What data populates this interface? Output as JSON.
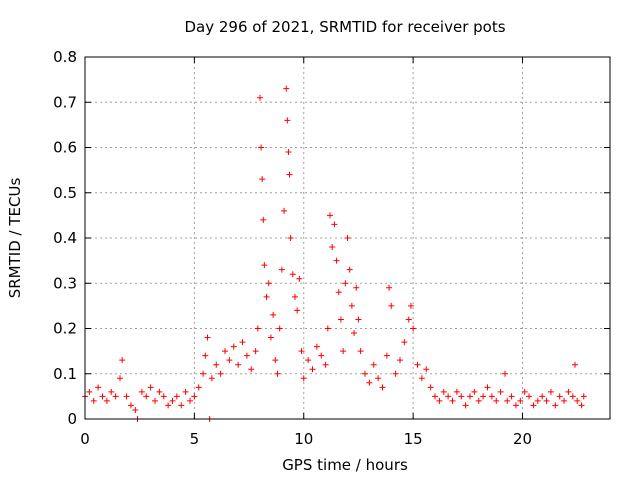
{
  "chart_data": {
    "type": "scatter",
    "title": "Day 296 of 2021, SRMTID for receiver pots",
    "xlabel": "GPS time / hours",
    "ylabel": "SRMTID / TECUs",
    "xlim": [
      0,
      24
    ],
    "ylim": [
      0,
      0.8
    ],
    "xticks": [
      0,
      5,
      10,
      15,
      20
    ],
    "xtick_labels": [
      "0",
      "5",
      "10",
      "15",
      "20"
    ],
    "yticks": [
      0,
      0.1,
      0.2,
      0.3,
      0.4,
      0.5,
      0.6,
      0.7,
      0.8
    ],
    "ytick_labels": [
      "0",
      "0.1",
      "0.2",
      "0.3",
      "0.4",
      "0.5",
      "0.6",
      "0.7",
      "0.8"
    ],
    "grid": true,
    "marker": "+",
    "color": "#ff0000",
    "series": [
      {
        "name": "SRMTID",
        "points": [
          [
            0.0,
            0.05
          ],
          [
            0.2,
            0.06
          ],
          [
            0.4,
            0.04
          ],
          [
            0.6,
            0.07
          ],
          [
            0.8,
            0.05
          ],
          [
            1.0,
            0.04
          ],
          [
            1.2,
            0.06
          ],
          [
            1.4,
            0.05
          ],
          [
            1.6,
            0.09
          ],
          [
            1.7,
            0.13
          ],
          [
            1.9,
            0.05
          ],
          [
            2.1,
            0.03
          ],
          [
            2.3,
            0.02
          ],
          [
            2.4,
            0.0
          ],
          [
            2.6,
            0.06
          ],
          [
            2.8,
            0.05
          ],
          [
            3.0,
            0.07
          ],
          [
            3.2,
            0.04
          ],
          [
            3.4,
            0.06
          ],
          [
            3.6,
            0.05
          ],
          [
            3.8,
            0.03
          ],
          [
            4.0,
            0.04
          ],
          [
            4.2,
            0.05
          ],
          [
            4.4,
            0.03
          ],
          [
            4.6,
            0.06
          ],
          [
            4.8,
            0.04
          ],
          [
            5.0,
            0.05
          ],
          [
            5.2,
            0.07
          ],
          [
            5.4,
            0.1
          ],
          [
            5.5,
            0.14
          ],
          [
            5.6,
            0.18
          ],
          [
            5.7,
            0.0
          ],
          [
            5.8,
            0.09
          ],
          [
            6.0,
            0.12
          ],
          [
            6.2,
            0.1
          ],
          [
            6.4,
            0.15
          ],
          [
            6.6,
            0.13
          ],
          [
            6.8,
            0.16
          ],
          [
            7.0,
            0.12
          ],
          [
            7.2,
            0.17
          ],
          [
            7.4,
            0.14
          ],
          [
            7.6,
            0.11
          ],
          [
            7.8,
            0.15
          ],
          [
            7.9,
            0.2
          ],
          [
            8.0,
            0.71
          ],
          [
            8.05,
            0.6
          ],
          [
            8.1,
            0.53
          ],
          [
            8.15,
            0.44
          ],
          [
            8.2,
            0.34
          ],
          [
            8.3,
            0.27
          ],
          [
            8.4,
            0.3
          ],
          [
            8.5,
            0.18
          ],
          [
            8.6,
            0.23
          ],
          [
            8.7,
            0.13
          ],
          [
            8.8,
            0.1
          ],
          [
            8.9,
            0.2
          ],
          [
            9.0,
            0.33
          ],
          [
            9.1,
            0.46
          ],
          [
            9.2,
            0.73
          ],
          [
            9.25,
            0.66
          ],
          [
            9.3,
            0.59
          ],
          [
            9.35,
            0.54
          ],
          [
            9.4,
            0.4
          ],
          [
            9.5,
            0.32
          ],
          [
            9.6,
            0.27
          ],
          [
            9.7,
            0.24
          ],
          [
            9.8,
            0.31
          ],
          [
            9.9,
            0.15
          ],
          [
            10.0,
            0.09
          ],
          [
            10.2,
            0.13
          ],
          [
            10.4,
            0.11
          ],
          [
            10.6,
            0.16
          ],
          [
            10.8,
            0.14
          ],
          [
            11.0,
            0.12
          ],
          [
            11.1,
            0.2
          ],
          [
            11.2,
            0.45
          ],
          [
            11.3,
            0.38
          ],
          [
            11.4,
            0.43
          ],
          [
            11.5,
            0.35
          ],
          [
            11.6,
            0.28
          ],
          [
            11.7,
            0.22
          ],
          [
            11.8,
            0.15
          ],
          [
            11.9,
            0.3
          ],
          [
            12.0,
            0.4
          ],
          [
            12.1,
            0.33
          ],
          [
            12.2,
            0.25
          ],
          [
            12.3,
            0.19
          ],
          [
            12.4,
            0.29
          ],
          [
            12.5,
            0.22
          ],
          [
            12.6,
            0.15
          ],
          [
            12.8,
            0.1
          ],
          [
            13.0,
            0.08
          ],
          [
            13.2,
            0.12
          ],
          [
            13.4,
            0.09
          ],
          [
            13.6,
            0.07
          ],
          [
            13.8,
            0.14
          ],
          [
            13.9,
            0.29
          ],
          [
            14.0,
            0.25
          ],
          [
            14.2,
            0.1
          ],
          [
            14.4,
            0.13
          ],
          [
            14.6,
            0.17
          ],
          [
            14.8,
            0.22
          ],
          [
            14.9,
            0.25
          ],
          [
            15.0,
            0.2
          ],
          [
            15.2,
            0.12
          ],
          [
            15.4,
            0.09
          ],
          [
            15.6,
            0.11
          ],
          [
            15.8,
            0.07
          ],
          [
            16.0,
            0.05
          ],
          [
            16.2,
            0.04
          ],
          [
            16.4,
            0.06
          ],
          [
            16.6,
            0.05
          ],
          [
            16.8,
            0.04
          ],
          [
            17.0,
            0.06
          ],
          [
            17.2,
            0.05
          ],
          [
            17.4,
            0.03
          ],
          [
            17.6,
            0.05
          ],
          [
            17.8,
            0.06
          ],
          [
            18.0,
            0.04
          ],
          [
            18.2,
            0.05
          ],
          [
            18.4,
            0.07
          ],
          [
            18.6,
            0.05
          ],
          [
            18.8,
            0.04
          ],
          [
            19.0,
            0.06
          ],
          [
            19.2,
            0.1
          ],
          [
            19.3,
            0.04
          ],
          [
            19.5,
            0.05
          ],
          [
            19.7,
            0.03
          ],
          [
            19.9,
            0.04
          ],
          [
            20.1,
            0.06
          ],
          [
            20.3,
            0.05
          ],
          [
            20.5,
            0.03
          ],
          [
            20.7,
            0.04
          ],
          [
            20.9,
            0.05
          ],
          [
            21.1,
            0.04
          ],
          [
            21.3,
            0.06
          ],
          [
            21.5,
            0.03
          ],
          [
            21.7,
            0.05
          ],
          [
            21.9,
            0.04
          ],
          [
            22.1,
            0.06
          ],
          [
            22.3,
            0.05
          ],
          [
            22.4,
            0.12
          ],
          [
            22.5,
            0.04
          ],
          [
            22.7,
            0.03
          ],
          [
            22.8,
            0.05
          ]
        ]
      }
    ]
  }
}
